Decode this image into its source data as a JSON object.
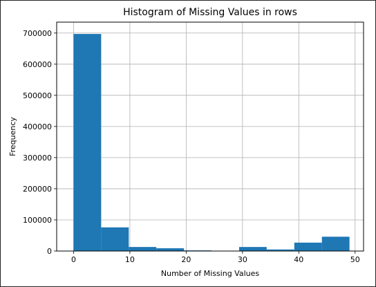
{
  "chart_data": {
    "type": "bar",
    "title": "Histogram of Missing Values in rows",
    "xlabel": "Number of Missing Values",
    "ylabel": "Frequency",
    "xlim": [
      -3.0,
      51.5
    ],
    "ylim": [
      0,
      735000
    ],
    "grid": true,
    "bar_color": "#1f77b4",
    "bins": [
      {
        "x0": 0.0,
        "x1": 4.9,
        "value": 697000
      },
      {
        "x0": 4.9,
        "x1": 9.8,
        "value": 76000
      },
      {
        "x0": 9.8,
        "x1": 14.7,
        "value": 13000
      },
      {
        "x0": 14.7,
        "x1": 19.6,
        "value": 9000
      },
      {
        "x0": 19.6,
        "x1": 24.5,
        "value": 2000
      },
      {
        "x0": 24.5,
        "x1": 29.4,
        "value": 0
      },
      {
        "x0": 29.4,
        "x1": 34.3,
        "value": 13000
      },
      {
        "x0": 34.3,
        "x1": 39.2,
        "value": 5000
      },
      {
        "x0": 39.2,
        "x1": 44.1,
        "value": 27000
      },
      {
        "x0": 44.1,
        "x1": 49.0,
        "value": 46000
      }
    ],
    "xticks": [
      0,
      10,
      20,
      30,
      40,
      50
    ],
    "xtick_labels": [
      "0",
      "10",
      "20",
      "30",
      "40",
      "50"
    ],
    "yticks": [
      0,
      100000,
      200000,
      300000,
      400000,
      500000,
      600000,
      700000
    ],
    "ytick_labels": [
      "0",
      "100000",
      "200000",
      "300000",
      "400000",
      "500000",
      "600000",
      "700000"
    ]
  }
}
